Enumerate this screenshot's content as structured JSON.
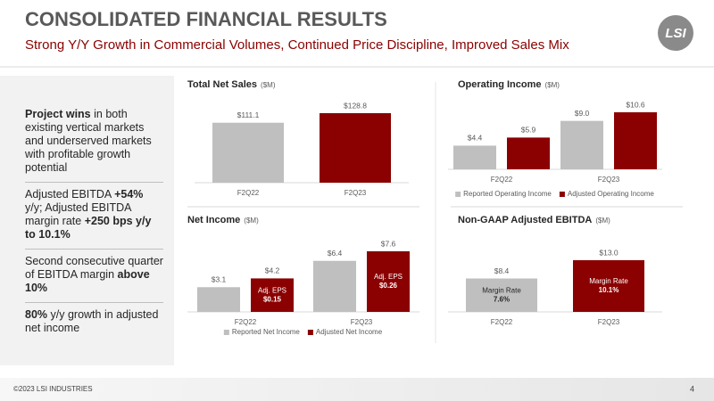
{
  "header": {
    "title": "CONSOLIDATED FINANCIAL RESULTS",
    "subtitle": "Strong Y/Y Growth in Commercial Volumes, Continued Price Discipline, Improved Sales Mix",
    "logo": "LSI"
  },
  "sidebar": [
    [
      {
        "text": "Project wins",
        "bold": true
      },
      {
        "text": " in both existing vertical markets and underserved markets with profitable growth potential"
      }
    ],
    [
      {
        "text": "Adjusted EBITDA "
      },
      {
        "text": "+54%",
        "bold": true
      },
      {
        "text": " y/y; Adjusted EBITDA margin rate "
      },
      {
        "text": "+250 bps y/y to 10.1%",
        "bold": true
      }
    ],
    [
      {
        "text": "Second consecutive quarter of EBITDA margin "
      },
      {
        "text": "above 10%",
        "bold": true
      }
    ],
    [
      {
        "text": "80%",
        "bold": true
      },
      {
        "text": " y/y growth in adjusted net income"
      }
    ]
  ],
  "chart_data": [
    {
      "type": "bar",
      "title": "Total Net Sales",
      "unit": "($M)",
      "categories": [
        "F2Q22",
        "F2Q23"
      ],
      "series": [
        {
          "colors": [
            "#bfbfbf",
            "#8b0000"
          ],
          "values": [
            111.1,
            128.8
          ],
          "value_labels": [
            "$111.1",
            "$128.8"
          ]
        }
      ]
    },
    {
      "type": "bar",
      "title": "Operating Income",
      "unit": "($M)",
      "categories": [
        "F2Q22",
        "F2Q23"
      ],
      "legend": true,
      "series": [
        {
          "name": "Reported Operating Income",
          "color": "#bfbfbf",
          "values": [
            4.4,
            9.0
          ],
          "value_labels": [
            "$4.4",
            "$9.0"
          ]
        },
        {
          "name": "Adjusted Operating Income",
          "color": "#8b0000",
          "values": [
            5.9,
            10.6
          ],
          "value_labels": [
            "$5.9",
            "$10.6"
          ]
        }
      ]
    },
    {
      "type": "bar",
      "title": "Net Income",
      "unit": "($M)",
      "categories": [
        "F2Q22",
        "F2Q23"
      ],
      "legend": true,
      "series": [
        {
          "name": "Reported Net Income",
          "color": "#bfbfbf",
          "values": [
            3.1,
            6.4
          ],
          "value_labels": [
            "$3.1",
            "$6.4"
          ]
        },
        {
          "name": "Adjusted Net Income",
          "color": "#8b0000",
          "values": [
            4.2,
            7.6
          ],
          "value_labels": [
            "$4.2",
            "$7.6"
          ],
          "inner_labels": [
            [
              "Adj. EPS",
              "$0.15"
            ],
            [
              "Adj. EPS",
              "$0.26"
            ]
          ]
        }
      ]
    },
    {
      "type": "bar",
      "title": "Non-GAAP Adjusted EBITDA",
      "unit": "($M)",
      "categories": [
        "F2Q22",
        "F2Q23"
      ],
      "series": [
        {
          "colors": [
            "#bfbfbf",
            "#8b0000"
          ],
          "values": [
            8.4,
            13.0
          ],
          "value_labels": [
            "$8.4",
            "$13.0"
          ],
          "inner_labels": [
            [
              "Margin Rate",
              "7.6%"
            ],
            [
              "Margin Rate",
              "10.1%"
            ]
          ]
        }
      ]
    }
  ],
  "footer": {
    "copyright": "©2023 LSI INDUSTRIES",
    "page": "4"
  }
}
